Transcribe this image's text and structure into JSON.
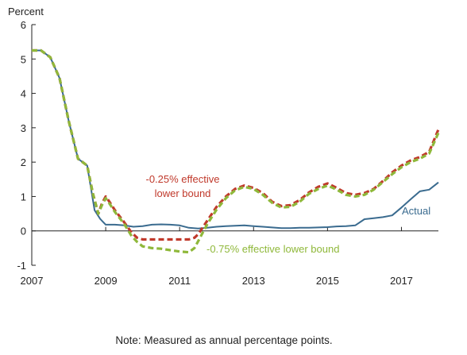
{
  "chart_data": {
    "type": "line",
    "ylabel": "Percent",
    "xlim": [
      2007,
      2018
    ],
    "ylim": [
      -1,
      6
    ],
    "x_ticks": [
      2007,
      2009,
      2011,
      2013,
      2015,
      2017
    ],
    "y_ticks": [
      -1,
      0,
      1,
      2,
      3,
      4,
      5,
      6
    ],
    "note": "Note: Measured as annual percentage points.",
    "series": [
      {
        "name": "Actual",
        "color": "#3a6b8f",
        "style": "solid",
        "x": [
          2007.0,
          2007.25,
          2007.5,
          2007.75,
          2008.0,
          2008.25,
          2008.5,
          2008.7,
          2008.85,
          2009.0,
          2009.25,
          2009.5,
          2009.75,
          2010.0,
          2010.25,
          2010.5,
          2010.75,
          2011.0,
          2011.25,
          2011.5,
          2011.75,
          2012.0,
          2012.25,
          2012.5,
          2012.75,
          2013.0,
          2013.25,
          2013.5,
          2013.75,
          2014.0,
          2014.25,
          2014.5,
          2014.75,
          2015.0,
          2015.25,
          2015.5,
          2015.75,
          2016.0,
          2016.25,
          2016.5,
          2016.75,
          2017.0,
          2017.25,
          2017.5,
          2017.75,
          2018.0
        ],
        "y": [
          5.25,
          5.25,
          5.05,
          4.45,
          3.2,
          2.1,
          1.9,
          0.6,
          0.35,
          0.18,
          0.18,
          0.16,
          0.12,
          0.14,
          0.18,
          0.19,
          0.18,
          0.16,
          0.09,
          0.07,
          0.09,
          0.12,
          0.14,
          0.15,
          0.16,
          0.14,
          0.12,
          0.1,
          0.08,
          0.08,
          0.09,
          0.09,
          0.1,
          0.11,
          0.13,
          0.14,
          0.16,
          0.34,
          0.37,
          0.4,
          0.45,
          0.68,
          0.92,
          1.15,
          1.2,
          1.41
        ]
      },
      {
        "name": "-0.25% effective lower bound",
        "color": "#c0392b",
        "style": "dashed",
        "x": [
          2007.0,
          2007.25,
          2007.5,
          2007.75,
          2008.0,
          2008.25,
          2008.5,
          2008.65,
          2008.8,
          2008.9,
          2009.0,
          2009.1,
          2009.25,
          2009.5,
          2009.7,
          2009.85,
          2010.0,
          2010.25,
          2010.5,
          2010.75,
          2011.0,
          2011.25,
          2011.4,
          2011.5,
          2011.75,
          2012.0,
          2012.25,
          2012.5,
          2012.75,
          2013.0,
          2013.25,
          2013.5,
          2013.75,
          2014.0,
          2014.25,
          2014.5,
          2014.75,
          2015.0,
          2015.25,
          2015.5,
          2015.75,
          2016.0,
          2016.25,
          2016.5,
          2016.75,
          2017.0,
          2017.25,
          2017.5,
          2017.75,
          2018.0
        ],
        "y": [
          5.25,
          5.25,
          5.05,
          4.45,
          3.2,
          2.1,
          1.9,
          1.1,
          0.5,
          0.8,
          1.0,
          0.85,
          0.6,
          0.25,
          -0.05,
          -0.2,
          -0.25,
          -0.25,
          -0.25,
          -0.25,
          -0.25,
          -0.25,
          -0.2,
          -0.1,
          0.3,
          0.7,
          1.0,
          1.22,
          1.32,
          1.25,
          1.1,
          0.85,
          0.72,
          0.75,
          0.9,
          1.12,
          1.28,
          1.38,
          1.25,
          1.1,
          1.05,
          1.1,
          1.22,
          1.45,
          1.7,
          1.9,
          2.05,
          2.15,
          2.3,
          2.95
        ]
      },
      {
        "name": "-0.75% effective lower bound",
        "color": "#8fb83a",
        "style": "dashed",
        "x": [
          2007.0,
          2007.25,
          2007.5,
          2007.75,
          2008.0,
          2008.25,
          2008.5,
          2008.65,
          2008.8,
          2008.9,
          2009.0,
          2009.1,
          2009.25,
          2009.5,
          2009.7,
          2009.85,
          2010.0,
          2010.25,
          2010.5,
          2010.75,
          2011.0,
          2011.25,
          2011.4,
          2011.5,
          2011.75,
          2012.0,
          2012.25,
          2012.5,
          2012.75,
          2013.0,
          2013.25,
          2013.5,
          2013.75,
          2014.0,
          2014.25,
          2014.5,
          2014.75,
          2015.0,
          2015.25,
          2015.5,
          2015.75,
          2016.0,
          2016.25,
          2016.5,
          2016.75,
          2017.0,
          2017.25,
          2017.5,
          2017.75,
          2018.0
        ],
        "y": [
          5.25,
          5.25,
          5.05,
          4.45,
          3.2,
          2.1,
          1.9,
          1.1,
          0.5,
          0.75,
          0.95,
          0.8,
          0.55,
          0.2,
          -0.15,
          -0.32,
          -0.45,
          -0.5,
          -0.52,
          -0.56,
          -0.6,
          -0.62,
          -0.5,
          -0.3,
          0.2,
          0.62,
          0.95,
          1.18,
          1.28,
          1.22,
          1.05,
          0.82,
          0.68,
          0.7,
          0.85,
          1.08,
          1.22,
          1.32,
          1.2,
          1.05,
          1.0,
          1.05,
          1.2,
          1.42,
          1.65,
          1.85,
          2.0,
          2.1,
          2.25,
          2.85
        ]
      }
    ],
    "annotations": [
      {
        "lines": [
          "-0.25% effective",
          "lower bound"
        ],
        "series": "-0.25% effective lower bound",
        "color": "#c0392b"
      },
      {
        "lines": [
          "-0.75% effective lower bound"
        ],
        "series": "-0.75% effective lower bound",
        "color": "#8fb83a"
      },
      {
        "lines": [
          "Actual"
        ],
        "series": "Actual",
        "color": "#3a6b8f"
      }
    ]
  }
}
